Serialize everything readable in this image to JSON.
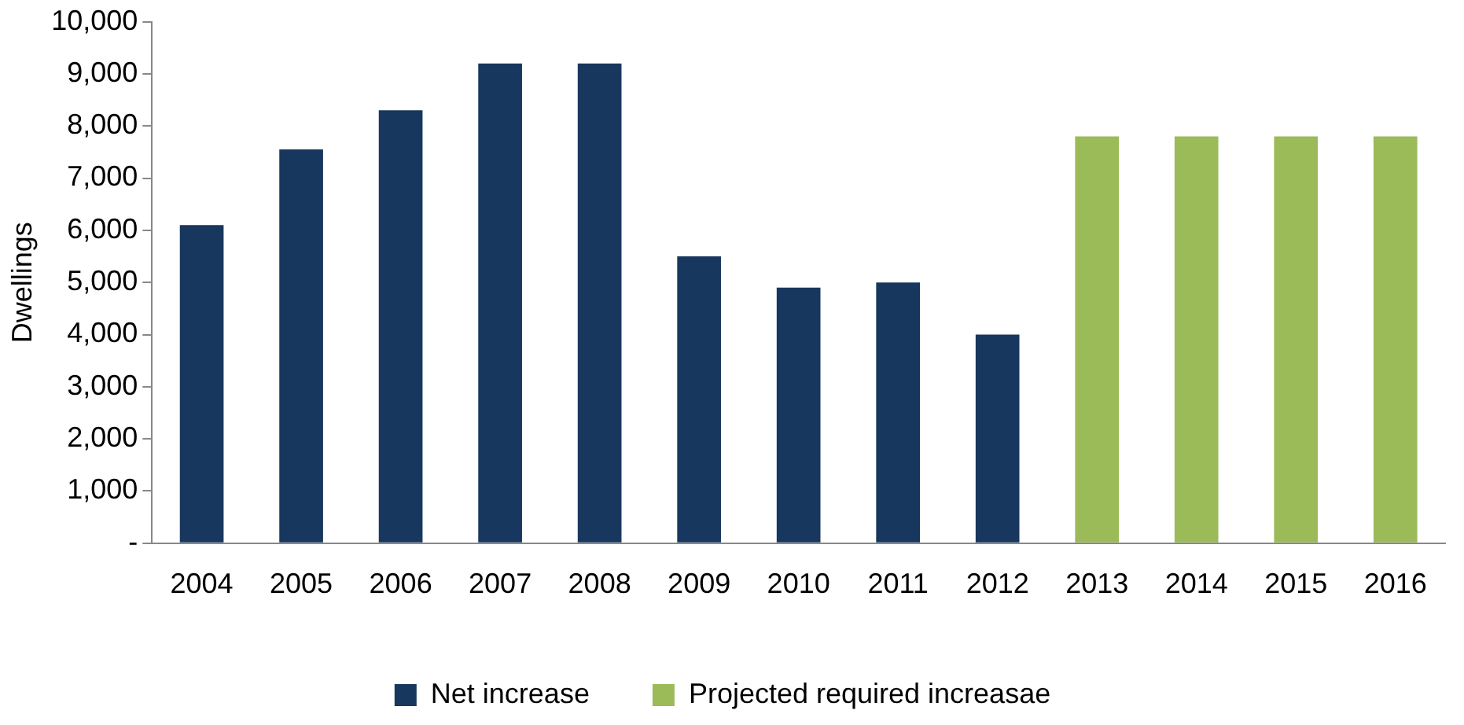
{
  "chart_data": {
    "type": "bar",
    "ylabel": "Dwellings",
    "categories": [
      "2004",
      "2005",
      "2006",
      "2007",
      "2008",
      "2009",
      "2010",
      "2011",
      "2012",
      "2013",
      "2014",
      "2015",
      "2016"
    ],
    "series": [
      {
        "name": "Net increase",
        "color": "#17375e",
        "values": [
          6100,
          7550,
          8300,
          9200,
          9200,
          5500,
          4900,
          5000,
          4000,
          null,
          null,
          null,
          null
        ]
      },
      {
        "name": "Projected required increasae",
        "color": "#9bbb59",
        "values": [
          null,
          null,
          null,
          null,
          null,
          null,
          null,
          null,
          null,
          7800,
          7800,
          7800,
          7800
        ]
      }
    ],
    "stacked": true,
    "ylim": [
      0,
      10000
    ],
    "yticks": [
      {
        "value": 0,
        "label": "-"
      },
      {
        "value": 1000,
        "label": "1,000"
      },
      {
        "value": 2000,
        "label": "2,000"
      },
      {
        "value": 3000,
        "label": "3,000"
      },
      {
        "value": 4000,
        "label": "4,000"
      },
      {
        "value": 5000,
        "label": "5,000"
      },
      {
        "value": 6000,
        "label": "6,000"
      },
      {
        "value": 7000,
        "label": "7,000"
      },
      {
        "value": 8000,
        "label": "8,000"
      },
      {
        "value": 9000,
        "label": "9,000"
      },
      {
        "value": 10000,
        "label": "10,000"
      }
    ],
    "grid": false,
    "legend": "bottom"
  }
}
